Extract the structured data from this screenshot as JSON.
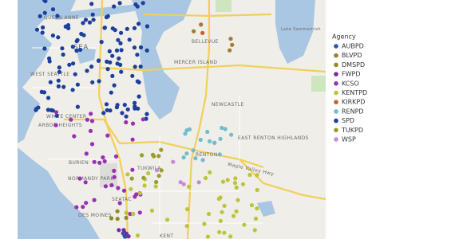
{
  "map": {
    "labels": [
      "QUEEN ANNE",
      "SEA",
      "BELLEVUE",
      "MERCER ISLAND",
      "WEST SEATTLE",
      "NEWCASTLE",
      "EAST RENTON HIGHLANDS",
      "RENTON",
      "TUKWILA",
      "BURIEN",
      "NORMANDY PARK",
      "SEATAC",
      "DES MOINES",
      "WHITE CENTER",
      "ARBOR HEIGHTS",
      "KENT",
      "Maple Valley Hwy",
      "Lake Sammamish"
    ],
    "legend": {
      "title": "Agency",
      "items": [
        {
          "name": "AUBPD",
          "color": "#2b56a6"
        },
        {
          "name": "BLVPD",
          "color": "#a47a2c"
        },
        {
          "name": "DMSPD",
          "color": "#8f8a24"
        },
        {
          "name": "FWPD",
          "color": "#7b2aa3"
        },
        {
          "name": "KCSO",
          "color": "#9a2fb4"
        },
        {
          "name": "KENTPD",
          "color": "#bcc43a"
        },
        {
          "name": "KIRKPD",
          "color": "#c2632b"
        },
        {
          "name": "RENPD",
          "color": "#72bccc"
        },
        {
          "name": "SPD",
          "color": "#1c3e9c"
        },
        {
          "name": "TUKPD",
          "color": "#9c9b2c"
        },
        {
          "name": "WSP",
          "color": "#c68ad8"
        }
      ]
    }
  }
}
